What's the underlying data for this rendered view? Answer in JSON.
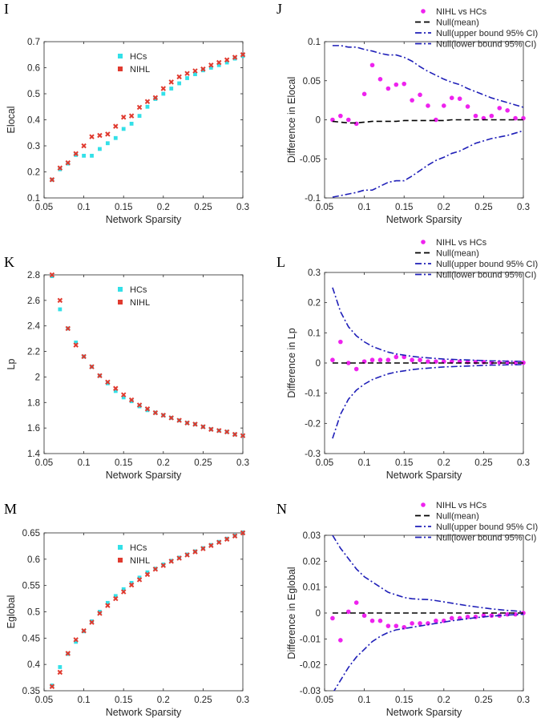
{
  "figure": {
    "description_free": true
  },
  "chart_data": [
    {
      "type": "scatter",
      "panel_label": "I",
      "xlabel": "Network Sparsity",
      "ylabel": "Elocal",
      "xlim": [
        0.05,
        0.3
      ],
      "ylim": [
        0.1,
        0.7
      ],
      "xticks": [
        "0.05",
        "0.1",
        "0.15",
        "0.2",
        "0.25",
        "0.3"
      ],
      "yticks": [
        "0.1",
        "0.2",
        "0.3",
        "0.4",
        "0.5",
        "0.6",
        "0.7"
      ],
      "legend_position": "top-center",
      "x": [
        0.06,
        0.07,
        0.08,
        0.09,
        0.1,
        0.11,
        0.12,
        0.13,
        0.14,
        0.15,
        0.16,
        0.17,
        0.18,
        0.19,
        0.2,
        0.21,
        0.22,
        0.23,
        0.24,
        0.25,
        0.26,
        0.27,
        0.28,
        0.29,
        0.3
      ],
      "series": [
        {
          "name": "HCs",
          "color": "#33e0e8",
          "marker": "square",
          "values": [
            0.17,
            0.21,
            0.232,
            0.265,
            0.262,
            0.262,
            0.288,
            0.31,
            0.33,
            0.365,
            0.385,
            0.415,
            0.45,
            0.48,
            0.5,
            0.52,
            0.54,
            0.56,
            0.575,
            0.59,
            0.6,
            0.61,
            0.62,
            0.635,
            0.645
          ]
        },
        {
          "name": "NIHL",
          "color": "#e03a2f",
          "marker": "x",
          "values": [
            0.17,
            0.215,
            0.235,
            0.27,
            0.3,
            0.335,
            0.34,
            0.345,
            0.375,
            0.41,
            0.415,
            0.448,
            0.47,
            0.485,
            0.52,
            0.545,
            0.565,
            0.578,
            0.588,
            0.595,
            0.61,
            0.62,
            0.63,
            0.64,
            0.65
          ]
        }
      ]
    },
    {
      "type": "scatter",
      "panel_label": "J",
      "xlabel": "Network Sparsity",
      "ylabel": "Difference in Elocal",
      "xlim": [
        0.05,
        0.3
      ],
      "ylim": [
        -0.1,
        0.1
      ],
      "xticks": [
        "0.05",
        "0.1",
        "0.15",
        "0.2",
        "0.25",
        "0.3"
      ],
      "yticks": [
        "-0.1",
        "-0.05",
        "0",
        "0.05",
        "0.1"
      ],
      "legend_position": "top-right",
      "x": [
        0.06,
        0.07,
        0.08,
        0.09,
        0.1,
        0.11,
        0.12,
        0.13,
        0.14,
        0.15,
        0.16,
        0.17,
        0.18,
        0.19,
        0.2,
        0.21,
        0.22,
        0.23,
        0.24,
        0.25,
        0.26,
        0.27,
        0.28,
        0.29,
        0.3
      ],
      "series": [
        {
          "name": "NIHL vs HCs",
          "color": "#ee22ee",
          "style": "dots",
          "values": [
            0.0,
            0.005,
            0.0,
            -0.005,
            0.033,
            0.07,
            0.052,
            0.04,
            0.045,
            0.046,
            0.025,
            0.032,
            0.018,
            0.0,
            0.018,
            0.028,
            0.027,
            0.017,
            0.005,
            0.002,
            0.005,
            0.015,
            0.012,
            0.002,
            0.002
          ]
        },
        {
          "name": "Null(mean)",
          "color": "#000000",
          "style": "dash",
          "values": [
            -0.002,
            -0.003,
            -0.004,
            -0.004,
            -0.003,
            -0.002,
            -0.002,
            -0.002,
            -0.002,
            -0.001,
            -0.001,
            -0.001,
            -0.001,
            -0.001,
            -0.001,
            0.0,
            0.0,
            0.0,
            0.0,
            0.0,
            0.0,
            0.0,
            0.0,
            0.0,
            0.0
          ]
        },
        {
          "name": "Null(upper bound 95% CI)",
          "color": "#1f1fb8",
          "style": "dashdot",
          "values": [
            0.095,
            0.095,
            0.093,
            0.093,
            0.09,
            0.088,
            0.085,
            0.083,
            0.083,
            0.08,
            0.075,
            0.068,
            0.062,
            0.057,
            0.052,
            0.048,
            0.045,
            0.04,
            0.036,
            0.032,
            0.028,
            0.025,
            0.022,
            0.019,
            0.016
          ]
        },
        {
          "name": "Null(lower bound 95% CI)",
          "color": "#1f1fb8",
          "style": "dashdot",
          "values": [
            -0.099,
            -0.097,
            -0.095,
            -0.093,
            -0.09,
            -0.09,
            -0.085,
            -0.08,
            -0.078,
            -0.078,
            -0.072,
            -0.065,
            -0.058,
            -0.052,
            -0.048,
            -0.043,
            -0.04,
            -0.035,
            -0.03,
            -0.027,
            -0.024,
            -0.022,
            -0.02,
            -0.017,
            -0.014
          ]
        }
      ]
    },
    {
      "type": "scatter",
      "panel_label": "K",
      "xlabel": "Network Sparsity",
      "ylabel": "Lp",
      "xlim": [
        0.05,
        0.3
      ],
      "ylim": [
        1.4,
        2.8
      ],
      "xticks": [
        "0.05",
        "0.1",
        "0.15",
        "0.2",
        "0.25",
        "0.3"
      ],
      "yticks": [
        "1.4",
        "1.6",
        "1.8",
        "2",
        "2.2",
        "2.4",
        "2.6",
        "2.8"
      ],
      "legend_position": "top-center",
      "x": [
        0.06,
        0.07,
        0.08,
        0.09,
        0.1,
        0.11,
        0.12,
        0.13,
        0.14,
        0.15,
        0.16,
        0.17,
        0.18,
        0.19,
        0.2,
        0.21,
        0.22,
        0.23,
        0.24,
        0.25,
        0.26,
        0.27,
        0.28,
        0.29,
        0.3
      ],
      "series": [
        {
          "name": "HCs",
          "color": "#33e0e8",
          "marker": "square",
          "values": [
            2.79,
            2.53,
            2.38,
            2.27,
            2.16,
            2.08,
            2.01,
            1.95,
            1.89,
            1.84,
            1.81,
            1.77,
            1.74,
            1.72,
            1.7,
            1.68,
            1.66,
            1.64,
            1.63,
            1.61,
            1.59,
            1.58,
            1.57,
            1.55,
            1.54
          ]
        },
        {
          "name": "NIHL",
          "color": "#e03a2f",
          "marker": "x",
          "values": [
            2.8,
            2.6,
            2.38,
            2.25,
            2.16,
            2.08,
            2.01,
            1.96,
            1.91,
            1.86,
            1.82,
            1.78,
            1.75,
            1.72,
            1.7,
            1.68,
            1.66,
            1.64,
            1.63,
            1.61,
            1.59,
            1.58,
            1.57,
            1.55,
            1.54
          ]
        }
      ]
    },
    {
      "type": "scatter",
      "panel_label": "L",
      "xlabel": "Network Sparsity",
      "ylabel": "Difference in Lp",
      "xlim": [
        0.05,
        0.3
      ],
      "ylim": [
        -0.3,
        0.3
      ],
      "xticks": [
        "0.05",
        "0.1",
        "0.15",
        "0.2",
        "0.25",
        "0.3"
      ],
      "yticks": [
        "-0.3",
        "-0.2",
        "-0.1",
        "0",
        "0.1",
        "0.2",
        "0.3"
      ],
      "legend_position": "top-right",
      "x": [
        0.06,
        0.07,
        0.08,
        0.09,
        0.1,
        0.11,
        0.12,
        0.13,
        0.14,
        0.15,
        0.16,
        0.17,
        0.18,
        0.19,
        0.2,
        0.21,
        0.22,
        0.23,
        0.24,
        0.25,
        0.26,
        0.27,
        0.28,
        0.29,
        0.3
      ],
      "series": [
        {
          "name": "NIHL vs HCs",
          "color": "#ee22ee",
          "style": "dots",
          "values": [
            0.01,
            0.07,
            0.0,
            -0.02,
            0.005,
            0.01,
            0.01,
            0.01,
            0.02,
            0.02,
            0.01,
            0.01,
            0.005,
            0.005,
            0.005,
            0.005,
            0.005,
            0.003,
            0.003,
            0.003,
            0.002,
            0.002,
            0.002,
            0.001,
            0.001
          ]
        },
        {
          "name": "Null(mean)",
          "color": "#000000",
          "style": "dash",
          "values": [
            0.0,
            0.0,
            0.0,
            0.0,
            0.0,
            0.0,
            0.0,
            0.0,
            0.0,
            0.0,
            0.0,
            0.0,
            0.0,
            0.0,
            0.0,
            0.0,
            0.0,
            0.0,
            0.0,
            0.0,
            0.0,
            0.0,
            0.0,
            0.0,
            0.0
          ]
        },
        {
          "name": "Null(upper bound 95% CI)",
          "color": "#1f1fb8",
          "style": "dashdot",
          "values": [
            0.25,
            0.17,
            0.12,
            0.09,
            0.07,
            0.055,
            0.045,
            0.036,
            0.03,
            0.026,
            0.022,
            0.019,
            0.017,
            0.015,
            0.013,
            0.012,
            0.011,
            0.01,
            0.009,
            0.008,
            0.007,
            0.007,
            0.006,
            0.006,
            0.005
          ]
        },
        {
          "name": "Null(lower bound 95% CI)",
          "color": "#1f1fb8",
          "style": "dashdot",
          "values": [
            -0.25,
            -0.17,
            -0.12,
            -0.09,
            -0.07,
            -0.055,
            -0.045,
            -0.036,
            -0.03,
            -0.026,
            -0.022,
            -0.019,
            -0.017,
            -0.015,
            -0.013,
            -0.012,
            -0.011,
            -0.01,
            -0.009,
            -0.008,
            -0.007,
            -0.007,
            -0.006,
            -0.006,
            -0.005
          ]
        }
      ]
    },
    {
      "type": "scatter",
      "panel_label": "M",
      "xlabel": "Network Sparsity",
      "ylabel": "Eglobal",
      "xlim": [
        0.05,
        0.3
      ],
      "ylim": [
        0.35,
        0.65
      ],
      "xticks": [
        "0.05",
        "0.1",
        "0.15",
        "0.2",
        "0.25",
        "0.3"
      ],
      "yticks": [
        "0.35",
        "0.4",
        "0.45",
        "0.5",
        "0.55",
        "0.6",
        "0.65"
      ],
      "legend_position": "top-center",
      "x": [
        0.06,
        0.07,
        0.08,
        0.09,
        0.1,
        0.11,
        0.12,
        0.13,
        0.14,
        0.15,
        0.16,
        0.17,
        0.18,
        0.19,
        0.2,
        0.21,
        0.22,
        0.23,
        0.24,
        0.25,
        0.26,
        0.27,
        0.28,
        0.29,
        0.3
      ],
      "series": [
        {
          "name": "HCs",
          "color": "#33e0e8",
          "marker": "square",
          "values": [
            0.36,
            0.395,
            0.42,
            0.443,
            0.463,
            0.482,
            0.5,
            0.517,
            0.53,
            0.543,
            0.555,
            0.565,
            0.575,
            0.582,
            0.59,
            0.597,
            0.603,
            0.609,
            0.615,
            0.621,
            0.627,
            0.633,
            0.639,
            0.645,
            0.651
          ]
        },
        {
          "name": "NIHL",
          "color": "#e03a2f",
          "marker": "x",
          "values": [
            0.358,
            0.385,
            0.421,
            0.447,
            0.464,
            0.48,
            0.497,
            0.512,
            0.525,
            0.538,
            0.551,
            0.561,
            0.571,
            0.581,
            0.588,
            0.596,
            0.602,
            0.608,
            0.614,
            0.62,
            0.626,
            0.632,
            0.638,
            0.644,
            0.65
          ]
        }
      ]
    },
    {
      "type": "scatter",
      "panel_label": "N",
      "xlabel": "Network Sparsity",
      "ylabel": "Difference in Eglobal",
      "xlim": [
        0.05,
        0.3
      ],
      "ylim": [
        -0.03,
        0.03
      ],
      "xticks": [
        "0.05",
        "0.1",
        "0.15",
        "0.2",
        "0.25",
        "0.3"
      ],
      "yticks": [
        "-0.03",
        "-0.02",
        "-0.01",
        "0",
        "0.01",
        "0.02",
        "0.03"
      ],
      "legend_position": "top-right",
      "x": [
        0.06,
        0.07,
        0.08,
        0.09,
        0.1,
        0.11,
        0.12,
        0.13,
        0.14,
        0.15,
        0.16,
        0.17,
        0.18,
        0.19,
        0.2,
        0.21,
        0.22,
        0.23,
        0.24,
        0.25,
        0.26,
        0.27,
        0.28,
        0.29,
        0.3
      ],
      "series": [
        {
          "name": "NIHL vs HCs",
          "color": "#ee22ee",
          "style": "dots",
          "values": [
            -0.002,
            -0.0105,
            0.0005,
            0.004,
            -0.001,
            -0.003,
            -0.003,
            -0.005,
            -0.005,
            -0.0055,
            -0.004,
            -0.004,
            -0.004,
            -0.003,
            -0.003,
            -0.002,
            -0.002,
            -0.0015,
            -0.0015,
            -0.001,
            -0.001,
            -0.001,
            -0.0005,
            -0.0005,
            0.0
          ]
        },
        {
          "name": "Null(mean)",
          "color": "#000000",
          "style": "dash",
          "values": [
            0.0,
            0.0,
            0.0,
            0.0,
            0.0,
            0.0,
            0.0,
            0.0,
            0.0,
            0.0,
            0.0,
            0.0,
            0.0,
            0.0,
            0.0,
            0.0,
            0.0,
            0.0,
            0.0,
            0.0,
            0.0,
            0.0,
            0.0,
            0.0,
            0.0
          ]
        },
        {
          "name": "Null(upper bound 95% CI)",
          "color": "#1f1fb8",
          "style": "dashdot",
          "values": [
            0.03,
            0.025,
            0.021,
            0.017,
            0.014,
            0.012,
            0.01,
            0.008,
            0.007,
            0.006,
            0.0055,
            0.0053,
            0.0052,
            0.0048,
            0.0043,
            0.0038,
            0.0033,
            0.0028,
            0.0024,
            0.002,
            0.0016,
            0.0013,
            0.001,
            0.0008,
            0.0005
          ]
        },
        {
          "name": "Null(lower bound 95% CI)",
          "color": "#1f1fb8",
          "style": "dashdot",
          "values": [
            -0.031,
            -0.026,
            -0.021,
            -0.017,
            -0.014,
            -0.011,
            -0.009,
            -0.0075,
            -0.0065,
            -0.006,
            -0.0055,
            -0.005,
            -0.0045,
            -0.004,
            -0.0035,
            -0.003,
            -0.0026,
            -0.0022,
            -0.0018,
            -0.0015,
            -0.0012,
            -0.001,
            -0.0008,
            -0.0006,
            -0.0005
          ]
        }
      ]
    }
  ]
}
